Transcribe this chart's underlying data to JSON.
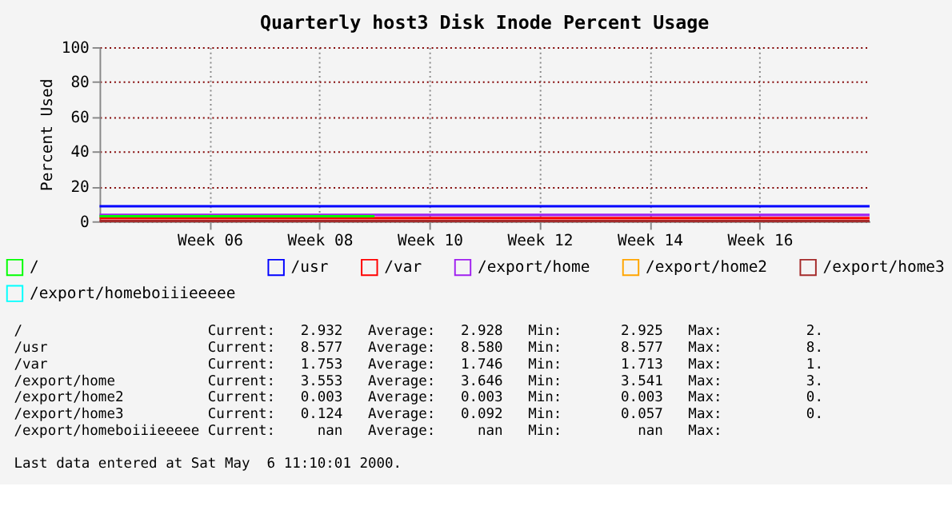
{
  "chart_data": {
    "type": "line",
    "title": "Quarterly host3 Disk Inode Percent Usage",
    "ylabel": "Percent Used",
    "categories": [
      null,
      null,
      "Week 06",
      null,
      "Week 08",
      null,
      "Week 10",
      null,
      "Week 12",
      null,
      "Week 14",
      null,
      "Week 16",
      null,
      null
    ],
    "ylim": [
      0,
      100
    ],
    "yticks": [
      0,
      20,
      40,
      60,
      80,
      100
    ],
    "grid": true,
    "legend": "bottom",
    "marker": "none",
    "line_style": "solid",
    "series": [
      {
        "name": "/",
        "color": "#00ff00",
        "values": [
          2.9,
          2.9,
          2.9,
          2.9,
          2.9,
          2.9,
          null,
          null,
          null,
          null,
          null,
          null,
          null,
          null,
          null
        ]
      },
      {
        "name": "/usr",
        "color": "#0000ff",
        "values": [
          8.6,
          8.6,
          8.6,
          8.6,
          8.6,
          8.6,
          8.6,
          8.6,
          8.6,
          8.6,
          8.6,
          8.6,
          8.6,
          8.6,
          8.6
        ]
      },
      {
        "name": "/var",
        "color": "#ff0000",
        "values": [
          1.8,
          1.8,
          1.8,
          1.8,
          1.8,
          1.8,
          1.8,
          1.8,
          1.8,
          1.8,
          1.8,
          1.8,
          1.8,
          1.8,
          1.8
        ]
      },
      {
        "name": "/export/home",
        "color": "#a020f0",
        "values": [
          3.6,
          3.6,
          3.6,
          3.6,
          3.6,
          3.6,
          3.6,
          3.6,
          3.6,
          3.6,
          3.6,
          3.6,
          3.6,
          3.6,
          3.6
        ]
      },
      {
        "name": "/export/home2",
        "color": "#ffa500",
        "values": [
          null,
          null,
          null,
          null,
          null,
          null,
          null,
          null,
          null,
          null,
          null,
          null,
          null,
          null,
          null
        ]
      },
      {
        "name": "/export/home3",
        "color": "#a52a2a",
        "values": [
          0.1,
          0.1,
          0.1,
          0.1,
          0.1,
          0.1,
          0.1,
          0.1,
          0.1,
          0.1,
          0.1,
          0.1,
          0.1,
          0.1,
          0.1
        ]
      },
      {
        "name": "/export/homeboiiieeeee",
        "color": "#00ffff",
        "values": [
          null,
          null,
          null,
          null,
          null,
          null,
          null,
          null,
          null,
          null,
          null,
          null,
          null,
          null,
          null
        ]
      }
    ],
    "annotations": [
      "/\tCurrent:\t2.932\tAverage:\t2.928\tMin:\t2.925\tMax:\t2.",
      "/usr\tCurrent:\t8.577\tAverage:\t8.580\tMin:\t8.577\tMax:\t8.",
      "/var\tCurrent:\t1.753\tAverage:\t1.746\tMin:\t1.713\tMax:\t1.",
      "/export/home\tCurrent:\t3.553\tAverage:\t3.646\tMin:\t3.541\tMax:\t3.",
      "/export/home2\tCurrent:\t0.003\tAverage:\t0.003\tMin:\t0.003\tMax:\t0.",
      "/export/home3\tCurrent:\t0.124\tAverage:\t0.092\tMin:\t0.057\tMax:\t0.",
      "/export/homeboiiieeeee\tCurrent:\tnan\tAverage:\tnan\tMin:\tnan\tMax:",
      "Last data entered at Sat May  6 11:10:01 2000."
    ]
  }
}
